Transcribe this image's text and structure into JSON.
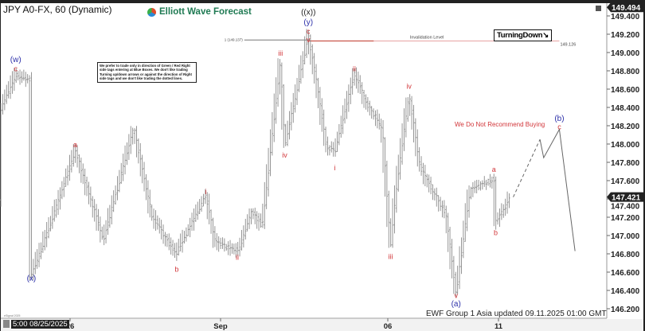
{
  "header": {
    "title": "JPY A0-FX, 60 (Dynamic)",
    "logo_text": "Elliott Wave Forecast"
  },
  "note": "We prefer to trade only in direction of Green / Red Right side tags entering at Blue Boxes. We don't like trading Turning up/down arrows or against the direction of Right side tags and we don't like trading the dotted lines.",
  "turning_tag": "TurningDown↘",
  "recommendation": "We Do Not Recommend Buying",
  "footer": {
    "updated": "EWF Group 1 Asia updated 09.11.2025 01:00 GMT",
    "watermark": "eSignal 2025",
    "cursor_time": "5:00 08/25/2025"
  },
  "colors": {
    "bars": "#8a8a8a",
    "wave_red": "#d2363a",
    "wave_blue": "#2b2fa8",
    "invalidation": "#c0392b",
    "accent_dark": "#222222"
  },
  "chart_data": {
    "type": "ohlc",
    "symbol": "JPY A0-FX",
    "interval": "60",
    "ylim": [
      146.1,
      149.5
    ],
    "y_ticks": [
      149.4,
      149.2,
      149.0,
      148.8,
      148.6,
      148.4,
      148.2,
      148.0,
      147.8,
      147.6,
      147.4,
      147.2,
      147.0,
      146.8,
      146.6,
      146.4,
      146.2
    ],
    "y_tick_labels": [
      "149.400",
      "149.200",
      "149.000",
      "148.800",
      "148.600",
      "148.400",
      "148.200",
      "148.000",
      "147.800",
      "147.600",
      "147.400",
      "147.200",
      "147.000",
      "146.800",
      "146.600",
      "146.400",
      "146.200"
    ],
    "x_ticks": [
      {
        "label": "26",
        "date": "2025-08-26 00:00"
      },
      {
        "label": "Sep",
        "date": "2025-09-01 00:00"
      },
      {
        "label": "06",
        "date": "2025-09-06 00:00"
      },
      {
        "label": "11",
        "date": "2025-09-11 00:00"
      }
    ],
    "price_labels": [
      {
        "text": "149.494",
        "price": 149.494
      },
      {
        "text": "147.421",
        "price": 147.421
      }
    ],
    "price_path": [
      {
        "date": "2025-08-23 05:00",
        "price": 148.36
      },
      {
        "date": "2025-08-23 20:00",
        "price": 148.75
      },
      {
        "date": "2025-08-24 10:00",
        "price": 148.7
      },
      {
        "date": "2025-08-24 11:00",
        "price": 146.57
      },
      {
        "date": "2025-08-25 03:00",
        "price": 147.05
      },
      {
        "date": "2025-08-26 05:00",
        "price": 147.92
      },
      {
        "date": "2025-08-27 08:00",
        "price": 146.96
      },
      {
        "date": "2025-08-28 13:00",
        "price": 148.17
      },
      {
        "date": "2025-08-29 06:00",
        "price": 147.23
      },
      {
        "date": "2025-08-30 05:00",
        "price": 146.79
      },
      {
        "date": "2025-08-31 10:00",
        "price": 147.44
      },
      {
        "date": "2025-08-31 19:00",
        "price": 146.92
      },
      {
        "date": "2025-09-01 13:00",
        "price": 146.83
      },
      {
        "date": "2025-09-01 22:00",
        "price": 147.27
      },
      {
        "date": "2025-09-02 06:00",
        "price": 147.1
      },
      {
        "date": "2025-09-02 19:00",
        "price": 148.92
      },
      {
        "date": "2025-09-02 22:00",
        "price": 147.97
      },
      {
        "date": "2025-09-03 15:00",
        "price": 149.18
      },
      {
        "date": "2025-09-03 22:00",
        "price": 148.57
      },
      {
        "date": "2025-09-04 04:00",
        "price": 147.97
      },
      {
        "date": "2025-09-04 10:00",
        "price": 147.92
      },
      {
        "date": "2025-09-05 00:00",
        "price": 148.77
      },
      {
        "date": "2025-09-05 09:00",
        "price": 148.44
      },
      {
        "date": "2025-09-05 20:00",
        "price": 148.18
      },
      {
        "date": "2025-09-06 03:00",
        "price": 146.88
      },
      {
        "date": "2025-09-06 09:00",
        "price": 147.49
      },
      {
        "date": "2025-09-06 23:00",
        "price": 148.55
      },
      {
        "date": "2025-09-07 11:00",
        "price": 147.75
      },
      {
        "date": "2025-09-08 15:00",
        "price": 147.23
      },
      {
        "date": "2025-09-09 02:00",
        "price": 146.36
      },
      {
        "date": "2025-09-09 17:00",
        "price": 147.49
      },
      {
        "date": "2025-09-10 19:00",
        "price": 147.62
      },
      {
        "date": "2025-09-10 21:00",
        "price": 147.14
      },
      {
        "date": "2025-09-11 12:00",
        "price": 147.4
      }
    ],
    "projection_dashed": [
      {
        "date": "2025-09-11 16:00",
        "price": 147.42
      },
      {
        "date": "2025-09-12 21:00",
        "price": 148.05
      }
    ],
    "projection_solid": [
      {
        "date": "2025-09-12 21:00",
        "price": 148.05
      },
      {
        "date": "2025-09-13 01:00",
        "price": 147.85
      },
      {
        "date": "2025-09-13 18:00",
        "price": 148.16
      },
      {
        "date": "2025-09-14 11:00",
        "price": 146.83
      }
    ],
    "fib_level": {
      "label": "1 (149.137)",
      "price": 149.137,
      "from": "2025-09-01 17:00",
      "to": "2025-09-03 15:00"
    },
    "invalidation": {
      "label": "Invalidation Level",
      "price": 149.126,
      "value_label": "149.126",
      "from": "2025-09-03 15:00",
      "to": "2025-09-13 18:00"
    },
    "wave_labels": [
      {
        "text": "(w)",
        "color": "blue",
        "date": "2025-08-23 20:00",
        "price": 148.92
      },
      {
        "text": "c",
        "color": "red",
        "date": "2025-08-23 20:00",
        "price": 148.82
      },
      {
        "text": "(x)",
        "color": "blue",
        "date": "2025-08-24 11:00",
        "price": 146.53
      },
      {
        "text": "a",
        "color": "red",
        "date": "2025-08-26 05:00",
        "price": 147.99
      },
      {
        "text": "b",
        "color": "red",
        "date": "2025-08-30 06:00",
        "price": 146.63
      },
      {
        "text": "i",
        "color": "red",
        "date": "2025-08-31 10:00",
        "price": 147.48
      },
      {
        "text": "ii",
        "color": "red",
        "date": "2025-09-01 12:00",
        "price": 146.76
      },
      {
        "text": "iii",
        "color": "red",
        "date": "2025-09-02 19:00",
        "price": 148.99
      },
      {
        "text": "iv",
        "color": "red",
        "date": "2025-09-02 22:00",
        "price": 147.88
      },
      {
        "text": "((x))",
        "color": "dark",
        "date": "2025-09-03 15:00",
        "price": 149.44
      },
      {
        "text": "(y)",
        "color": "blue",
        "date": "2025-09-03 15:00",
        "price": 149.33
      },
      {
        "text": "c",
        "color": "red",
        "date": "2025-09-03 15:00",
        "price": 149.23
      },
      {
        "text": "v",
        "color": "red",
        "date": "2025-09-03 15:00",
        "price": 149.17
      },
      {
        "text": "i",
        "color": "red",
        "date": "2025-09-04 10:00",
        "price": 147.74
      },
      {
        "text": "ii",
        "color": "red",
        "date": "2025-09-05 00:00",
        "price": 148.82
      },
      {
        "text": "iii",
        "color": "red",
        "date": "2025-09-06 03:00",
        "price": 146.77
      },
      {
        "text": "iv",
        "color": "red",
        "date": "2025-09-06 23:00",
        "price": 148.63
      },
      {
        "text": "v",
        "color": "red",
        "date": "2025-09-09 02:00",
        "price": 146.3
      },
      {
        "text": "(a)",
        "color": "blue",
        "date": "2025-09-09 02:00",
        "price": 146.22
      },
      {
        "text": "a",
        "color": "red",
        "date": "2025-09-10 19:00",
        "price": 147.72
      },
      {
        "text": "b",
        "color": "red",
        "date": "2025-09-10 21:00",
        "price": 147.03
      },
      {
        "text": "(b)",
        "color": "blue",
        "date": "2025-09-13 18:00",
        "price": 148.28
      },
      {
        "text": "c",
        "color": "red",
        "date": "2025-09-13 18:00",
        "price": 148.21
      }
    ]
  }
}
